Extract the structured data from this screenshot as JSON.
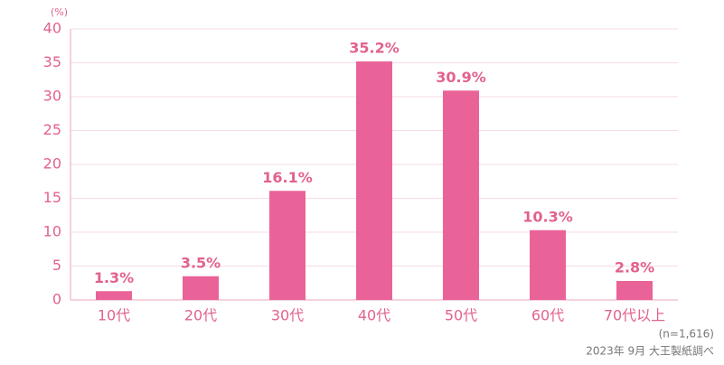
{
  "chart_data": {
    "type": "bar",
    "y_unit": "(%)",
    "categories": [
      "10代",
      "20代",
      "30代",
      "40代",
      "50代",
      "60代",
      "70代以上"
    ],
    "values": [
      1.3,
      3.5,
      16.1,
      35.2,
      30.9,
      10.3,
      2.8
    ],
    "value_labels": [
      "1.3%",
      "3.5%",
      "16.1%",
      "35.2%",
      "30.9%",
      "10.3%",
      "2.8%"
    ],
    "color": "#ea6398",
    "ylim": [
      0,
      40
    ],
    "yticks": [
      0,
      5,
      10,
      15,
      20,
      25,
      30,
      35,
      40
    ],
    "grid": true,
    "notes": [
      "(n=1,616)",
      "2023年 9月 大王製紙調べ"
    ]
  }
}
